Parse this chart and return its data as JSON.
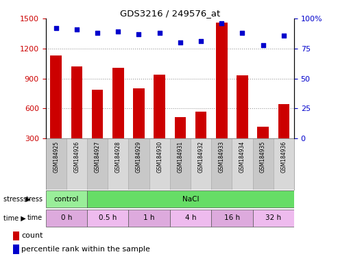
{
  "title": "GDS3216 / 249576_at",
  "samples": [
    "GSM184925",
    "GSM184926",
    "GSM184927",
    "GSM184928",
    "GSM184929",
    "GSM184930",
    "GSM184931",
    "GSM184932",
    "GSM184933",
    "GSM184934",
    "GSM184935",
    "GSM184936"
  ],
  "counts": [
    1130,
    1020,
    790,
    1010,
    800,
    940,
    510,
    565,
    1460,
    930,
    420,
    640
  ],
  "percentile_ranks": [
    92,
    91,
    88,
    89,
    87,
    88,
    80,
    81,
    96,
    88,
    78,
    86
  ],
  "left_ylim": [
    300,
    1500
  ],
  "left_yticks": [
    300,
    600,
    900,
    1200,
    1500
  ],
  "right_ylim": [
    0,
    100
  ],
  "right_yticks": [
    0,
    25,
    50,
    75,
    100
  ],
  "bar_color": "#cc0000",
  "dot_color": "#0000cc",
  "bar_bottom": 300,
  "stress_groups": [
    {
      "label": "control",
      "start": 0,
      "end": 2,
      "color": "#99ee99"
    },
    {
      "label": "NaCl",
      "start": 2,
      "end": 12,
      "color": "#66dd66"
    }
  ],
  "time_groups": [
    {
      "label": "0 h",
      "start": 0,
      "end": 2,
      "color": "#ddaadd"
    },
    {
      "label": "0.5 h",
      "start": 2,
      "end": 4,
      "color": "#eebbee"
    },
    {
      "label": "1 h",
      "start": 4,
      "end": 6,
      "color": "#ddaadd"
    },
    {
      "label": "4 h",
      "start": 6,
      "end": 8,
      "color": "#eebbee"
    },
    {
      "label": "16 h",
      "start": 8,
      "end": 10,
      "color": "#ddaadd"
    },
    {
      "label": "32 h",
      "start": 10,
      "end": 12,
      "color": "#eebbee"
    }
  ],
  "legend_count_color": "#cc0000",
  "legend_dot_color": "#0000cc",
  "grid_color": "#999999",
  "axis_label_color_left": "#cc0000",
  "axis_label_color_right": "#0000cc",
  "bg_color": "#ffffff",
  "label_bg": "#cccccc"
}
